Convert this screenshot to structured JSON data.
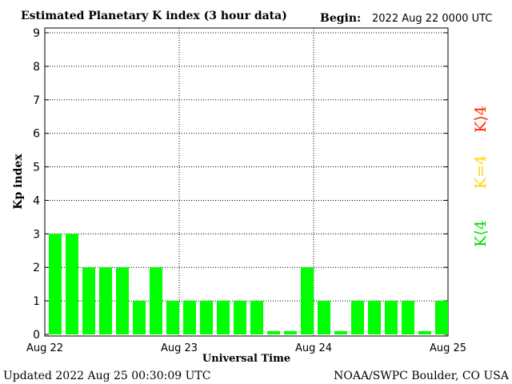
{
  "header": {
    "title": "Estimated Planetary K index (3 hour data)",
    "begin_label": "Begin:",
    "begin_value": "2022 Aug 22 0000 UTC"
  },
  "footer": {
    "updated": "Updated 2022 Aug 25 00:30:09 UTC",
    "credit": "NOAA/SWPC Boulder, CO USA"
  },
  "legend": {
    "high": "K⟩4",
    "equal": "K=4",
    "low": "K⟨4"
  },
  "chart_data": {
    "type": "bar",
    "title": "Estimated Planetary K index (3 hour data)",
    "xlabel": "Universal Time",
    "ylabel": "Kp index",
    "ylim": [
      0,
      9
    ],
    "yticks": [
      "0",
      "1",
      "2",
      "3",
      "4",
      "5",
      "6",
      "7",
      "8",
      "9"
    ],
    "xticks": [
      "Aug 22",
      "Aug 23",
      "Aug 24",
      "Aug 25"
    ],
    "grid": true,
    "bins_per_day": 8,
    "values": [
      3,
      3,
      2,
      2,
      2,
      1,
      2,
      1,
      1,
      1,
      1,
      1,
      1,
      0.1,
      0.1,
      2,
      1,
      0.1,
      1,
      1,
      1,
      1,
      0.1,
      1
    ],
    "colors": {
      "low": "#00ff00",
      "equal": "#ffd700",
      "high": "#ff2a00"
    }
  }
}
